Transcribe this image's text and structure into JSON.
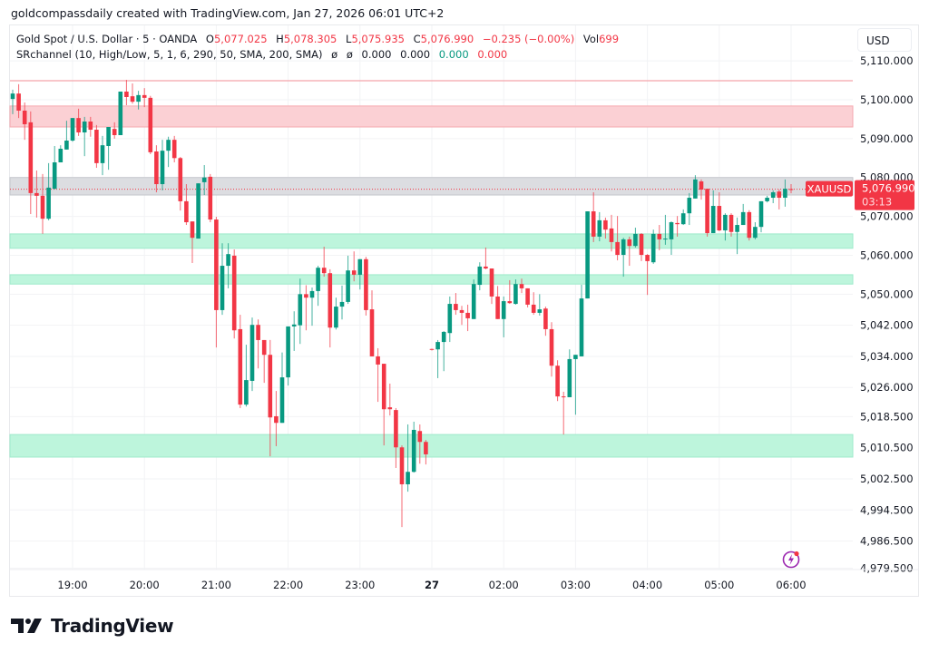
{
  "credit": "goldcompassdaily created with TradingView.com, Jan 27, 2026 06:01 UTC+2",
  "legend": {
    "symbol": "Gold Spot / U.S. Dollar · 5 · OANDA",
    "o_label": "O",
    "o": "5,077.025",
    "h_label": "H",
    "h": "5,078.305",
    "l_label": "L",
    "l": "5,075.935",
    "c_label": "C",
    "c": "5,076.990",
    "change": "−0.235 (−0.00%)",
    "vol_label": "Vol",
    "vol": "699",
    "indicator": "SRchannel (10, High/Low, 5, 1, 6, 290, 50, SMA, 200, SMA)",
    "ind_vals": [
      "ø",
      "ø",
      "0.000",
      "0.000",
      "0.000",
      "0.000"
    ]
  },
  "currency": "USD",
  "price_tag": {
    "symbol": "XAUUSD",
    "price": "5,076.990",
    "countdown": "03:13"
  },
  "brand": "TradingView",
  "colors": {
    "up": "#089981",
    "down": "#f23645",
    "resistance_zone": "#fbd0d4",
    "support_zone": "#bdf5dc",
    "current_zone": "#dcdde1",
    "alert_icon": "#9c27b0"
  },
  "icons": [
    "lightning-alert-icon",
    "tradingview-logo-icon"
  ],
  "chart_data": {
    "type": "candlestick",
    "interval_minutes": 5,
    "ylim": [
      4977,
      5114
    ],
    "grid": true,
    "y_ticks": [
      5110,
      5100,
      5090,
      5080,
      5070,
      5060,
      5050,
      5042,
      5034,
      5026,
      5018.5,
      5010.5,
      5002.5,
      4994.5,
      4986.5,
      4979.5
    ],
    "y_tick_labels": [
      "5,110.000",
      "5,100.000",
      "5,090.000",
      "5,080.000",
      "5,070.000",
      "5,060.000",
      "5,050.000",
      "5,042.000",
      "5,034.000",
      "5,026.000",
      "5,018.500",
      "5,010.500",
      "5,002.500",
      "4,994.500",
      "4,986.500",
      "4,979.500"
    ],
    "x_ticks": [
      {
        "label": "19:00",
        "bar": 10
      },
      {
        "label": "20:00",
        "bar": 22
      },
      {
        "label": "21:00",
        "bar": 34
      },
      {
        "label": "22:00",
        "bar": 46
      },
      {
        "label": "23:00",
        "bar": 58
      },
      {
        "label": "27",
        "bar": 70,
        "bold": true
      },
      {
        "label": "02:00",
        "bar": 82
      },
      {
        "label": "03:00",
        "bar": 94
      },
      {
        "label": "04:00",
        "bar": 106
      },
      {
        "label": "05:00",
        "bar": 118
      },
      {
        "label": "06:00",
        "bar": 130
      }
    ],
    "zones": [
      {
        "kind": "resistance",
        "from": 5093.0,
        "to": 5098.4
      },
      {
        "kind": "current",
        "from": 5075.5,
        "to": 5080.0
      },
      {
        "kind": "support",
        "from": 5061.8,
        "to": 5065.5
      },
      {
        "kind": "support",
        "from": 5052.6,
        "to": 5055.0
      },
      {
        "kind": "support",
        "from": 5008.1,
        "to": 5013.9
      }
    ],
    "resistance_line": 5104.9,
    "last_price": 5076.99,
    "ohlc": [
      [
        5100.2,
        5102.6,
        5096.3,
        5101.6
      ],
      [
        5101.6,
        5104,
        5095.3,
        5097.2
      ],
      [
        5097.2,
        5099.3,
        5089.7,
        5093.7
      ],
      [
        5094.2,
        5097,
        5070.6,
        5076
      ],
      [
        5076,
        5081.8,
        5069.7,
        5075.3
      ],
      [
        5075.3,
        5080.9,
        5065.5,
        5069.4
      ],
      [
        5069.4,
        5083.7,
        5069,
        5077.4
      ],
      [
        5077.1,
        5088.1,
        5077,
        5083.9
      ],
      [
        5083.9,
        5088.3,
        5083.9,
        5087.4
      ],
      [
        5087.2,
        5094.6,
        5087.2,
        5089.5
      ],
      [
        5089.5,
        5095.3,
        5089.2,
        5095.3
      ],
      [
        5095.3,
        5097.7,
        5090.7,
        5091.6
      ],
      [
        5091.6,
        5095.6,
        5085.5,
        5094.4
      ],
      [
        5094.4,
        5095.6,
        5090.5,
        5092.3
      ],
      [
        5092.3,
        5093.5,
        5082.5,
        5083.7
      ],
      [
        5083.7,
        5090.7,
        5080.6,
        5088.3
      ],
      [
        5088.1,
        5093,
        5082,
        5093
      ],
      [
        5092.5,
        5094.2,
        5090,
        5090.9
      ],
      [
        5090.9,
        5102.1,
        5090.9,
        5102.1
      ],
      [
        5102.1,
        5105.1,
        5098.6,
        5100.7
      ],
      [
        5100.9,
        5104.2,
        5099,
        5099.5
      ],
      [
        5099.5,
        5102.3,
        5097.5,
        5101.2
      ],
      [
        5101.2,
        5103,
        5098.1,
        5100.5
      ],
      [
        5100.5,
        5101,
        5086,
        5086.5
      ],
      [
        5086.7,
        5088.3,
        5076.2,
        5078.3
      ],
      [
        5078.3,
        5089.7,
        5076.7,
        5086.9
      ],
      [
        5086.9,
        5090.5,
        5082.7,
        5089.7
      ],
      [
        5089.7,
        5090.7,
        5083.9,
        5085
      ],
      [
        5085,
        5085.3,
        5071.5,
        5073.9
      ],
      [
        5073.9,
        5078.3,
        5067.8,
        5068.5
      ],
      [
        5068.7,
        5068.7,
        5058,
        5064.5
      ],
      [
        5064.3,
        5078.5,
        5064.3,
        5078.5
      ],
      [
        5078.8,
        5083.2,
        5075.5,
        5080
      ],
      [
        5080.2,
        5080.9,
        5068.5,
        5069.2
      ],
      [
        5069.2,
        5069.9,
        5036.3,
        5045.9
      ],
      [
        5045.9,
        5063.1,
        5044.7,
        5057.3
      ],
      [
        5057.3,
        5063.1,
        5051.5,
        5060.3
      ],
      [
        5059.9,
        5061.5,
        5038.6,
        5040.7
      ],
      [
        5041,
        5044.7,
        5020.7,
        5021.6
      ],
      [
        5021.6,
        5037,
        5021.1,
        5027.9
      ],
      [
        5027.7,
        5044,
        5025.1,
        5042.1
      ],
      [
        5042.1,
        5043.5,
        5030.9,
        5038.2
      ],
      [
        5038.2,
        5038.2,
        5027.2,
        5034.4
      ],
      [
        5034.4,
        5038.2,
        5008.3,
        5018.3
      ],
      [
        5018.6,
        5025.1,
        5010.9,
        5016.9
      ],
      [
        5016.9,
        5035,
        5016.9,
        5028.6
      ],
      [
        5028.6,
        5041.7,
        5026.5,
        5041.7
      ],
      [
        5041.7,
        5045.6,
        5035.4,
        5042.2
      ],
      [
        5042,
        5054,
        5037.2,
        5050
      ],
      [
        5050,
        5052.3,
        5040.7,
        5049.1
      ],
      [
        5049.1,
        5051.7,
        5041.9,
        5050.8
      ],
      [
        5050.8,
        5057.3,
        5047,
        5056.8
      ],
      [
        5056.8,
        5062.2,
        5054.5,
        5055.4
      ],
      [
        5055.4,
        5056.4,
        5036.3,
        5041.4
      ],
      [
        5041.4,
        5049.1,
        5040.9,
        5046.8
      ],
      [
        5046.8,
        5052.2,
        5043.5,
        5048
      ],
      [
        5048,
        5059.9,
        5047.5,
        5056.1
      ],
      [
        5056.1,
        5061,
        5053.3,
        5055
      ],
      [
        5055,
        5059,
        5051.2,
        5059
      ],
      [
        5059,
        5059.6,
        5044.5,
        5045.9
      ],
      [
        5046.1,
        5051,
        5034,
        5034
      ],
      [
        5034,
        5036.1,
        5022.3,
        5031.9
      ],
      [
        5032.1,
        5032.1,
        5011.1,
        5020.4
      ],
      [
        5020.9,
        5027,
        5018.8,
        5020.4
      ],
      [
        5020.2,
        5020.7,
        5005.3,
        5010.6
      ],
      [
        5010.6,
        5011.1,
        4990.1,
        5001.1
      ],
      [
        5001.1,
        5016.5,
        4999.2,
        5004.3
      ],
      [
        5004.3,
        5017.2,
        5004.1,
        5015.1
      ],
      [
        5014.8,
        5016.5,
        5006.4,
        5012
      ],
      [
        5012,
        5012.5,
        5006.2,
        5008.8
      ],
      [
        5035.9,
        5036,
        5035.5,
        5035.7
      ],
      [
        5035.8,
        5038.2,
        5028.4,
        5037.7
      ],
      [
        5037.7,
        5040.5,
        5030.2,
        5040.3
      ],
      [
        5040,
        5049.4,
        5037.7,
        5047.5
      ],
      [
        5047.5,
        5050.3,
        5044.7,
        5045.9
      ],
      [
        5045.9,
        5047,
        5042.1,
        5045.2
      ],
      [
        5045.2,
        5047.3,
        5040.5,
        5043.8
      ],
      [
        5043.6,
        5053.8,
        5043.6,
        5052.6
      ],
      [
        5052.4,
        5058.2,
        5051,
        5057.1
      ],
      [
        5057.1,
        5062,
        5056.4,
        5056.6
      ],
      [
        5056.6,
        5056.6,
        5047.5,
        5049.4
      ],
      [
        5049.4,
        5052.1,
        5043.6,
        5043.6
      ],
      [
        5043.6,
        5049.4,
        5038.9,
        5048.2
      ],
      [
        5048.2,
        5053.6,
        5047.5,
        5047.7
      ],
      [
        5047.5,
        5053.8,
        5047.3,
        5052.6
      ],
      [
        5052.6,
        5054,
        5050.3,
        5051.5
      ],
      [
        5051.5,
        5051.5,
        5046.6,
        5047.3
      ],
      [
        5047.3,
        5050.5,
        5044.7,
        5045.2
      ],
      [
        5045.2,
        5050,
        5044.5,
        5046.1
      ],
      [
        5046.3,
        5046.8,
        5039.3,
        5041
      ],
      [
        5041,
        5042.8,
        5028.8,
        5031.6
      ],
      [
        5031.6,
        5033,
        5022.5,
        5023.7
      ],
      [
        5023.7,
        5024.9,
        5013.9,
        5023.5
      ],
      [
        5023.5,
        5035.8,
        5023.5,
        5033.3
      ],
      [
        5033.3,
        5034.4,
        5019,
        5034.4
      ],
      [
        5034,
        5052.4,
        5034,
        5048.9
      ],
      [
        5048.9,
        5071.3,
        5048.9,
        5071.3
      ],
      [
        5071.3,
        5076.2,
        5063.4,
        5064.8
      ],
      [
        5064.8,
        5071.1,
        5063.6,
        5069
      ],
      [
        5069,
        5069.7,
        5064.3,
        5066.6
      ],
      [
        5066.9,
        5070.4,
        5061,
        5063.4
      ],
      [
        5063.4,
        5070.1,
        5058.7,
        5060.1
      ],
      [
        5060.1,
        5064.5,
        5054.5,
        5064.1
      ],
      [
        5064.1,
        5064.8,
        5057.3,
        5062.4
      ],
      [
        5062.4,
        5067.1,
        5062,
        5065.5
      ],
      [
        5065.5,
        5065.7,
        5058.5,
        5060.1
      ],
      [
        5060.1,
        5060.3,
        5049.8,
        5058.5
      ],
      [
        5058.2,
        5066.6,
        5057.8,
        5065.5
      ],
      [
        5065.5,
        5067.8,
        5061.3,
        5064.1
      ],
      [
        5064.1,
        5070.4,
        5062.7,
        5064.3
      ],
      [
        5064.1,
        5068.7,
        5060.1,
        5068.5
      ],
      [
        5068.3,
        5070.1,
        5064.8,
        5068
      ],
      [
        5068,
        5071.8,
        5067.8,
        5070.8
      ],
      [
        5070.8,
        5076,
        5067.8,
        5074.8
      ],
      [
        5074.6,
        5080.6,
        5074.6,
        5079.5
      ],
      [
        5079,
        5079.5,
        5074.3,
        5076.9
      ],
      [
        5077.1,
        5077.1,
        5064.8,
        5065.7
      ],
      [
        5065.7,
        5076.7,
        5065.7,
        5072.7
      ],
      [
        5072.7,
        5076.2,
        5066.2,
        5066.4
      ],
      [
        5066.4,
        5070.8,
        5063.8,
        5070.4
      ],
      [
        5070.4,
        5070.8,
        5064.8,
        5066
      ],
      [
        5066,
        5069.7,
        5060.3,
        5067.8
      ],
      [
        5067.8,
        5073.2,
        5067.8,
        5071.1
      ],
      [
        5071.1,
        5071.6,
        5063.8,
        5064.5
      ],
      [
        5064.5,
        5068.5,
        5064.1,
        5067.3
      ],
      [
        5067.3,
        5073.9,
        5065.9,
        5073.9
      ],
      [
        5073.9,
        5075.3,
        5073.6,
        5074.8
      ],
      [
        5074.8,
        5076.7,
        5073.4,
        5076.2
      ],
      [
        5076.4,
        5076.9,
        5071.8,
        5074.8
      ],
      [
        5074.8,
        5079.5,
        5072.5,
        5077.1
      ],
      [
        5077.025,
        5078.305,
        5075.935,
        5076.99
      ]
    ]
  }
}
